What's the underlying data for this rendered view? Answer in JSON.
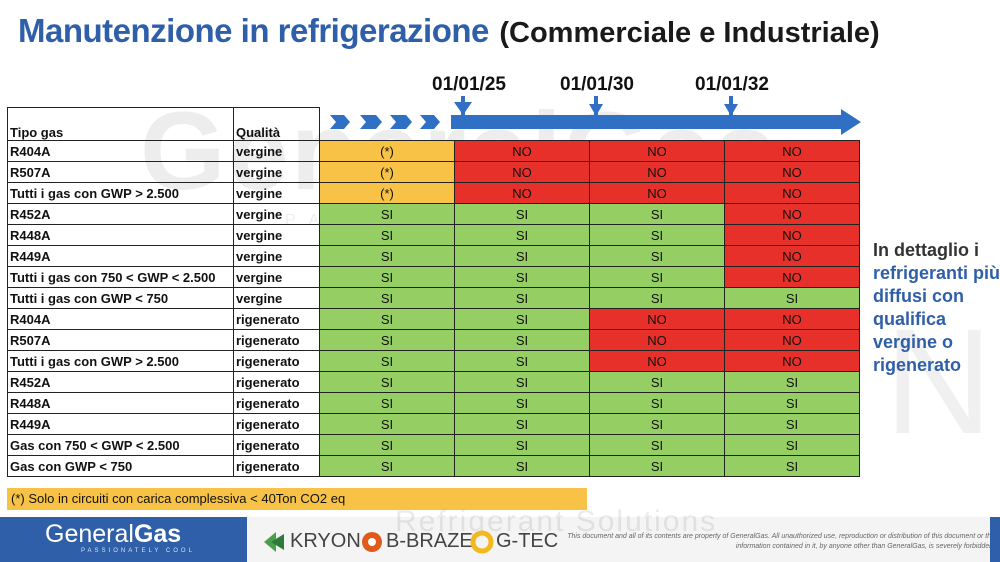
{
  "title": {
    "main": "Manutenzione in refrigerazione",
    "sub": "(Commerciale e Industriale)"
  },
  "watermarks": {
    "generalgas": "GeneralGas",
    "passionately": "PASSIONATELY COOL",
    "kryon": "KRYON",
    "solutions": "Refrigerant Solutions"
  },
  "timeline": {
    "dates": [
      "01/01/25",
      "01/01/30",
      "01/01/32"
    ],
    "color": "#2f6fc4"
  },
  "table": {
    "headers": [
      "Tipo gas",
      "Qualità"
    ],
    "rows": [
      {
        "gas": "R404A",
        "quality": "vergine",
        "cells": [
          {
            "v": "(*)",
            "c": "y"
          },
          {
            "v": "NO",
            "c": "r"
          },
          {
            "v": "NO",
            "c": "r"
          },
          {
            "v": "NO",
            "c": "r"
          }
        ]
      },
      {
        "gas": "R507A",
        "quality": "vergine",
        "cells": [
          {
            "v": "(*)",
            "c": "y"
          },
          {
            "v": "NO",
            "c": "r"
          },
          {
            "v": "NO",
            "c": "r"
          },
          {
            "v": "NO",
            "c": "r"
          }
        ]
      },
      {
        "gas": "Tutti i gas con GWP > 2.500",
        "quality": "vergine",
        "cells": [
          {
            "v": "(*)",
            "c": "y"
          },
          {
            "v": "NO",
            "c": "r"
          },
          {
            "v": "NO",
            "c": "r"
          },
          {
            "v": "NO",
            "c": "r"
          }
        ]
      },
      {
        "gas": "R452A",
        "quality": "vergine",
        "cells": [
          {
            "v": "SI",
            "c": "g"
          },
          {
            "v": "SI",
            "c": "g"
          },
          {
            "v": "SI",
            "c": "g"
          },
          {
            "v": "NO",
            "c": "r"
          }
        ]
      },
      {
        "gas": "R448A",
        "quality": "vergine",
        "cells": [
          {
            "v": "SI",
            "c": "g"
          },
          {
            "v": "SI",
            "c": "g"
          },
          {
            "v": "SI",
            "c": "g"
          },
          {
            "v": "NO",
            "c": "r"
          }
        ]
      },
      {
        "gas": "R449A",
        "quality": "vergine",
        "cells": [
          {
            "v": "SI",
            "c": "g"
          },
          {
            "v": "SI",
            "c": "g"
          },
          {
            "v": "SI",
            "c": "g"
          },
          {
            "v": "NO",
            "c": "r"
          }
        ]
      },
      {
        "gas": "Tutti i gas con 750 < GWP < 2.500",
        "quality": "vergine",
        "cells": [
          {
            "v": "SI",
            "c": "g"
          },
          {
            "v": "SI",
            "c": "g"
          },
          {
            "v": "SI",
            "c": "g"
          },
          {
            "v": "NO",
            "c": "r"
          }
        ]
      },
      {
        "gas": "Tutti i gas con GWP < 750",
        "quality": "vergine",
        "cells": [
          {
            "v": "SI",
            "c": "g"
          },
          {
            "v": "SI",
            "c": "g"
          },
          {
            "v": "SI",
            "c": "g"
          },
          {
            "v": "SI",
            "c": "g"
          }
        ]
      },
      {
        "gas": "R404A",
        "quality": "rigenerato",
        "cells": [
          {
            "v": "SI",
            "c": "g"
          },
          {
            "v": "SI",
            "c": "g"
          },
          {
            "v": "NO",
            "c": "r"
          },
          {
            "v": "NO",
            "c": "r"
          }
        ]
      },
      {
        "gas": "R507A",
        "quality": "rigenerato",
        "cells": [
          {
            "v": "SI",
            "c": "g"
          },
          {
            "v": "SI",
            "c": "g"
          },
          {
            "v": "NO",
            "c": "r"
          },
          {
            "v": "NO",
            "c": "r"
          }
        ]
      },
      {
        "gas": "Tutti i gas con GWP > 2.500",
        "quality": "rigenerato",
        "cells": [
          {
            "v": "SI",
            "c": "g"
          },
          {
            "v": "SI",
            "c": "g"
          },
          {
            "v": "NO",
            "c": "r"
          },
          {
            "v": "NO",
            "c": "r"
          }
        ]
      },
      {
        "gas": "R452A",
        "quality": "rigenerato",
        "cells": [
          {
            "v": "SI",
            "c": "g"
          },
          {
            "v": "SI",
            "c": "g"
          },
          {
            "v": "SI",
            "c": "g"
          },
          {
            "v": "SI",
            "c": "g"
          }
        ]
      },
      {
        "gas": "R448A",
        "quality": "rigenerato",
        "cells": [
          {
            "v": "SI",
            "c": "g"
          },
          {
            "v": "SI",
            "c": "g"
          },
          {
            "v": "SI",
            "c": "g"
          },
          {
            "v": "SI",
            "c": "g"
          }
        ]
      },
      {
        "gas": "R449A",
        "quality": "rigenerato",
        "cells": [
          {
            "v": "SI",
            "c": "g"
          },
          {
            "v": "SI",
            "c": "g"
          },
          {
            "v": "SI",
            "c": "g"
          },
          {
            "v": "SI",
            "c": "g"
          }
        ]
      },
      {
        "gas": "Gas con 750 < GWP < 2.500",
        "quality": "rigenerato",
        "cells": [
          {
            "v": "SI",
            "c": "g"
          },
          {
            "v": "SI",
            "c": "g"
          },
          {
            "v": "SI",
            "c": "g"
          },
          {
            "v": "SI",
            "c": "g"
          }
        ]
      },
      {
        "gas": "Gas con GWP < 750",
        "quality": "rigenerato",
        "cells": [
          {
            "v": "SI",
            "c": "g"
          },
          {
            "v": "SI",
            "c": "g"
          },
          {
            "v": "SI",
            "c": "g"
          },
          {
            "v": "SI",
            "c": "g"
          }
        ]
      }
    ],
    "colors": {
      "green": "#95cf64",
      "red": "#e8302a",
      "yellow": "#f7c245"
    }
  },
  "note": "(*) Solo in circuiti con carica complessiva < 40Ton CO2 eq",
  "side": {
    "intro": "In dettaglio i",
    "highlight": "refrigeranti più diffusi con qualifica",
    "outro": "vergine o rigenerato"
  },
  "footer": {
    "logo_general": "General",
    "logo_gas": "Gas",
    "logo_tagline": "PASSIONATELY COOL",
    "brands": [
      "KRYON",
      "B-BRAZE",
      "G-TEC"
    ],
    "disclaimer": "This document and all of its contents are property of GeneralGas. All unauthorized use, reproduction or distribution of this document or the information contained in it, by anyone other than GeneralGas, is severely forbidden."
  }
}
